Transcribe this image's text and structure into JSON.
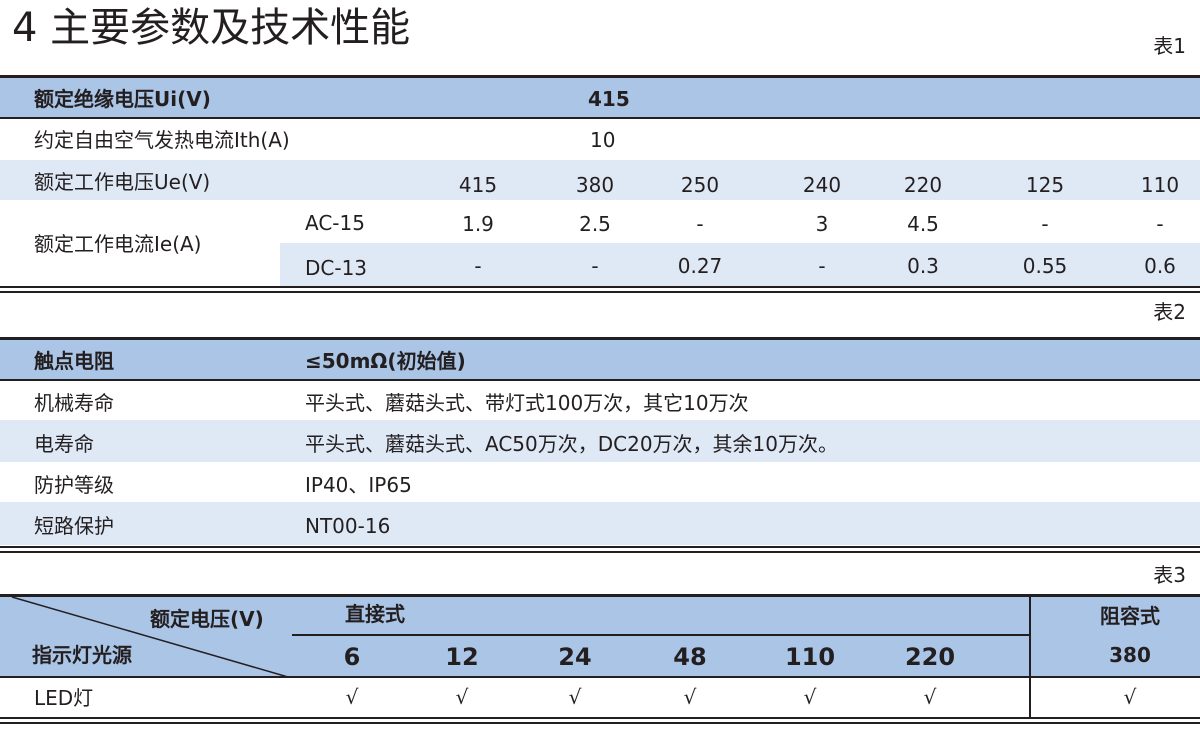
{
  "title": "4 主要参数及技术性能",
  "table1": {
    "caption": "表1",
    "insulation_label": "额定绝缘电压Ui(V)",
    "insulation_value": "415",
    "thermal_label": "约定自由空气发热电流Ith(A)",
    "thermal_value": "10",
    "voltage_label": "额定工作电压Ue(V)",
    "voltages": [
      "415",
      "380",
      "250",
      "240",
      "220",
      "125",
      "110"
    ],
    "current_label": "额定工作电流Ie(A)",
    "ac_label": "AC-15",
    "ac_values": [
      "1.9",
      "2.5",
      "-",
      "3",
      "4.5",
      "-",
      "-"
    ],
    "dc_label": "DC-13",
    "dc_values": [
      "-",
      "-",
      "0.27",
      "-",
      "0.3",
      "0.55",
      "0.6"
    ]
  },
  "table2": {
    "caption": "表2",
    "rows": [
      {
        "label": "触点电阻",
        "value": "≤50mΩ(初始值)"
      },
      {
        "label": "机械寿命",
        "value": "平头式、蘑菇头式、带灯式100万次，其它10万次"
      },
      {
        "label": "电寿命",
        "value": "平头式、蘑菇头式、AC50万次，DC20万次，其余10万次。"
      },
      {
        "label": "防护等级",
        "value": "IP40、IP65"
      },
      {
        "label": "短路保护",
        "value": "NT00-16"
      }
    ]
  },
  "table3": {
    "caption": "表3",
    "corner_top": "额定电压(V)",
    "corner_bottom": "指示灯光源",
    "group_direct": "直接式",
    "group_rc": "阻容式",
    "voltages": [
      "6",
      "12",
      "24",
      "48",
      "110",
      "220",
      "380"
    ],
    "row_label": "LED灯",
    "marks": [
      "√",
      "√",
      "√",
      "√",
      "√",
      "√",
      "√"
    ]
  },
  "colors": {
    "header": "#abc5e7",
    "light_row": "#dfe8f5"
  }
}
